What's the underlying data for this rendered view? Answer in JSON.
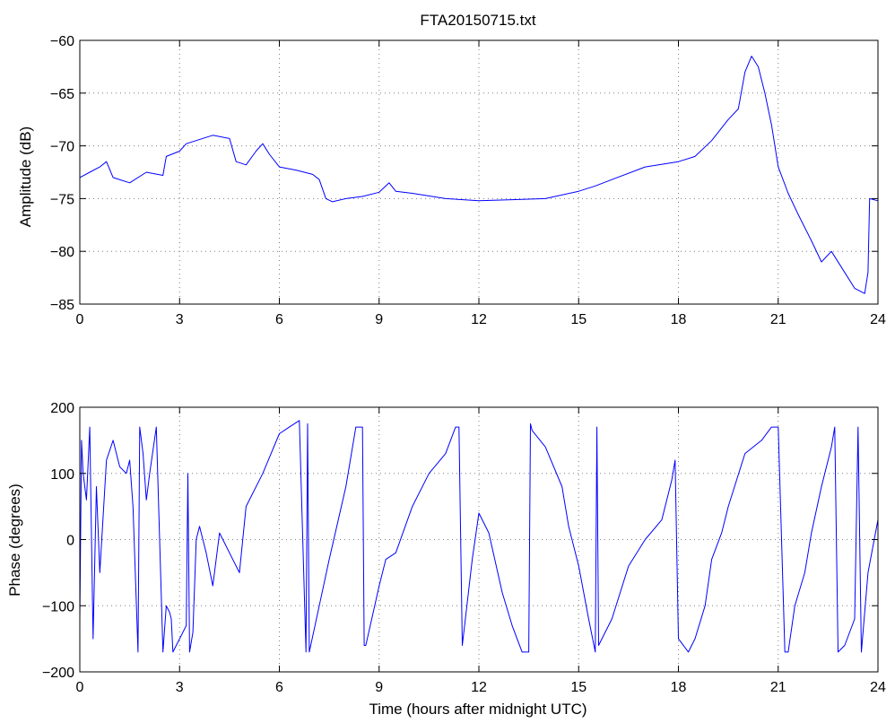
{
  "chart_data": [
    {
      "type": "line",
      "title": "FTA20150715.txt",
      "xlabel": "",
      "ylabel": "Amplitude (dB)",
      "xlim": [
        0,
        24
      ],
      "ylim": [
        -85,
        -60
      ],
      "xticks": [
        0,
        3,
        6,
        9,
        12,
        15,
        18,
        21,
        24
      ],
      "yticks": [
        -85,
        -80,
        -75,
        -70,
        -65,
        -60
      ],
      "xtick_labels": [
        "0",
        "3",
        "6",
        "9",
        "12",
        "15",
        "18",
        "21",
        "24"
      ],
      "ytick_labels": [
        "−85",
        "−80",
        "−75",
        "−70",
        "−65",
        "−60"
      ],
      "grid": true,
      "color": "#0000ff",
      "series": [
        {
          "x": [
            0,
            0.3,
            0.6,
            0.8,
            1.0,
            1.5,
            2.0,
            2.5,
            2.6,
            3.0,
            3.2,
            3.5,
            4.0,
            4.5,
            4.7,
            5.0,
            5.3,
            5.5,
            5.7,
            6.0,
            6.5,
            7.0,
            7.2,
            7.4,
            7.6,
            8.0,
            8.5,
            9.0,
            9.3,
            9.5,
            10.0,
            11.0,
            12.0,
            13.0,
            14.0,
            15.0,
            15.5,
            16.0,
            17.0,
            18.0,
            18.5,
            19.0,
            19.5,
            19.8,
            20.0,
            20.2,
            20.4,
            20.6,
            20.8,
            21.0,
            21.3,
            21.6,
            22.0,
            22.3,
            22.6,
            23.0,
            23.3,
            23.6,
            23.7,
            23.75,
            24.0
          ],
          "y": [
            -73.0,
            -72.5,
            -72.0,
            -71.5,
            -73.0,
            -73.5,
            -72.5,
            -72.8,
            -71.0,
            -70.5,
            -69.8,
            -69.5,
            -69.0,
            -69.3,
            -71.5,
            -71.8,
            -70.5,
            -69.8,
            -70.8,
            -72.0,
            -72.3,
            -72.7,
            -73.2,
            -75.0,
            -75.3,
            -75.0,
            -74.8,
            -74.4,
            -73.5,
            -74.3,
            -74.5,
            -75.0,
            -75.2,
            -75.1,
            -75.0,
            -74.3,
            -73.8,
            -73.2,
            -72.0,
            -71.5,
            -71.0,
            -69.5,
            -67.5,
            -66.5,
            -63.0,
            -61.5,
            -62.5,
            -65.0,
            -68.0,
            -72.0,
            -74.5,
            -76.5,
            -79.0,
            -81.0,
            -80.0,
            -82.0,
            -83.5,
            -84.0,
            -82.0,
            -75.0,
            -75.2
          ]
        }
      ]
    },
    {
      "type": "line",
      "title": "",
      "xlabel": "Time (hours after midnight UTC)",
      "ylabel": "Phase (degrees)",
      "xlim": [
        0,
        24
      ],
      "ylim": [
        -200,
        200
      ],
      "xticks": [
        0,
        3,
        6,
        9,
        12,
        15,
        18,
        21,
        24
      ],
      "yticks": [
        -200,
        -100,
        0,
        100,
        200
      ],
      "xtick_labels": [
        "0",
        "3",
        "6",
        "9",
        "12",
        "15",
        "18",
        "21",
        "24"
      ],
      "ytick_labels": [
        "−200",
        "−100",
        "0",
        "100",
        "200"
      ],
      "grid": true,
      "color": "#0000ff",
      "series": [
        {
          "x": [
            0,
            0.05,
            0.1,
            0.2,
            0.3,
            0.4,
            0.5,
            0.6,
            0.8,
            1.0,
            1.2,
            1.4,
            1.5,
            1.6,
            1.75,
            1.8,
            1.9,
            2.0,
            2.1,
            2.3,
            2.5,
            2.6,
            2.7,
            2.75,
            2.8,
            3.0,
            3.2,
            3.25,
            3.3,
            3.4,
            3.5,
            3.6,
            3.8,
            4.0,
            4.2,
            4.5,
            4.8,
            5.0,
            5.5,
            6.0,
            6.3,
            6.6,
            6.8,
            6.85,
            6.9,
            7.2,
            7.5,
            8.0,
            8.3,
            8.5,
            8.55,
            8.6,
            9.0,
            9.2,
            9.5,
            10.0,
            10.5,
            11.0,
            11.3,
            11.4,
            11.5,
            11.8,
            12.0,
            12.3,
            12.7,
            13.0,
            13.3,
            13.5,
            13.55,
            13.6,
            14.0,
            14.5,
            14.7,
            15.0,
            15.3,
            15.5,
            15.55,
            15.6,
            16.0,
            16.5,
            17.0,
            17.5,
            17.8,
            17.9,
            18.0,
            18.3,
            18.5,
            18.8,
            19.0,
            19.3,
            19.5,
            20.0,
            20.5,
            20.8,
            21.0,
            21.2,
            21.3,
            21.5,
            21.8,
            22.0,
            22.3,
            22.6,
            22.7,
            22.8,
            23.0,
            23.3,
            23.4,
            23.5,
            23.7,
            24.0
          ],
          "y": [
            -120,
            150,
            100,
            60,
            170,
            -150,
            80,
            -50,
            120,
            150,
            110,
            100,
            120,
            50,
            -170,
            170,
            130,
            60,
            100,
            170,
            -170,
            -100,
            -110,
            -120,
            -170,
            -150,
            -130,
            100,
            -170,
            -140,
            0,
            20,
            -20,
            -70,
            10,
            -20,
            -50,
            50,
            100,
            160,
            170,
            180,
            -170,
            175,
            -170,
            -100,
            -30,
            80,
            170,
            170,
            -160,
            -160,
            -70,
            -30,
            -20,
            50,
            100,
            130,
            170,
            170,
            -160,
            -30,
            40,
            10,
            -80,
            -130,
            -170,
            -170,
            175,
            165,
            140,
            80,
            20,
            -40,
            -120,
            -170,
            170,
            -160,
            -120,
            -40,
            0,
            30,
            90,
            120,
            -150,
            -170,
            -150,
            -100,
            -30,
            10,
            50,
            130,
            150,
            170,
            170,
            -170,
            -170,
            -100,
            -50,
            10,
            80,
            140,
            170,
            -170,
            -160,
            -120,
            170,
            -170,
            -50,
            30
          ]
        }
      ]
    }
  ]
}
